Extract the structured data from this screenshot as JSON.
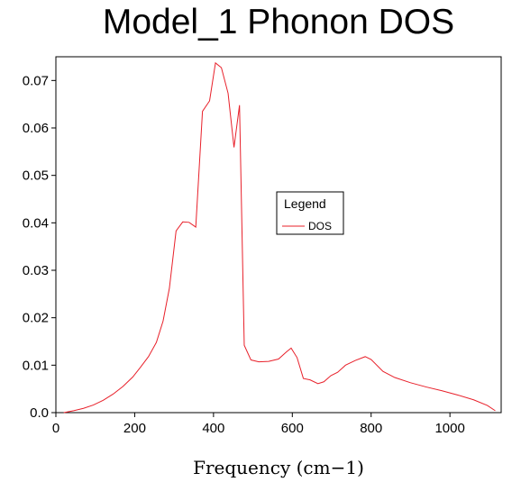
{
  "chart_data": {
    "type": "line",
    "title": "Model_1 Phonon DOS",
    "xlabel": "Frequency (cm−1)",
    "ylabel": "",
    "xlim": [
      0,
      1130
    ],
    "ylim": [
      0,
      0.075
    ],
    "x_ticks": [
      0,
      200,
      400,
      600,
      800,
      1000
    ],
    "x_tick_labels": [
      "0",
      "200",
      "400",
      "600",
      "800",
      "1000"
    ],
    "y_ticks": [
      0,
      0.01,
      0.02,
      0.03,
      0.04,
      0.05,
      0.06,
      0.07
    ],
    "y_tick_labels": [
      "0.0",
      "0.01",
      "0.02",
      "0.03",
      "0.04",
      "0.05",
      "0.06",
      "0.07"
    ],
    "grid": false,
    "legend": {
      "title": "Legend",
      "placement": "center-right"
    },
    "series": [
      {
        "name": "DOS",
        "color": "#e8202a",
        "x": [
          20,
          45,
          70,
          95,
          120,
          145,
          170,
          195,
          215,
          235,
          255,
          272,
          288,
          305,
          322,
          338,
          355,
          372,
          390,
          405,
          420,
          437,
          452,
          466,
          478,
          495,
          515,
          540,
          565,
          585,
          597,
          612,
          628,
          645,
          665,
          680,
          698,
          715,
          735,
          760,
          785,
          800,
          830,
          860,
          900,
          940,
          980,
          1020,
          1060,
          1095,
          1115
        ],
        "values": [
          0.0,
          0.0004,
          0.0009,
          0.0016,
          0.0026,
          0.0039,
          0.0055,
          0.0075,
          0.0096,
          0.0118,
          0.0148,
          0.0193,
          0.0262,
          0.0383,
          0.0402,
          0.0401,
          0.0391,
          0.0635,
          0.0657,
          0.0737,
          0.0727,
          0.0673,
          0.0559,
          0.0648,
          0.0142,
          0.0111,
          0.0107,
          0.0108,
          0.0113,
          0.0128,
          0.0136,
          0.0116,
          0.0072,
          0.0069,
          0.0061,
          0.0065,
          0.0078,
          0.0085,
          0.01,
          0.011,
          0.0118,
          0.0112,
          0.0087,
          0.0074,
          0.0063,
          0.0054,
          0.0046,
          0.0037,
          0.0027,
          0.0015,
          0.0004
        ]
      }
    ]
  }
}
